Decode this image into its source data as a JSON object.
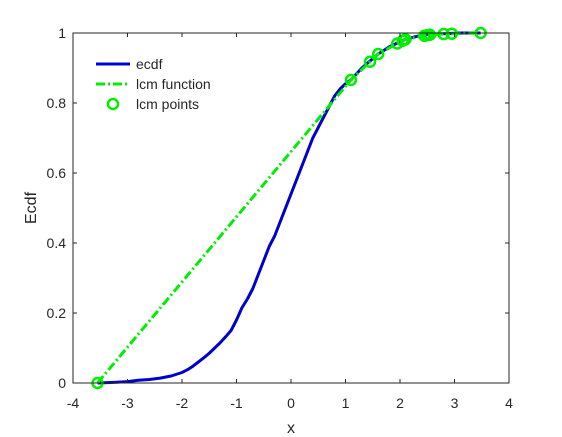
{
  "chart_data": {
    "type": "line",
    "xlabel": "x",
    "ylabel": "Ecdf",
    "xlim": [
      -4,
      4
    ],
    "ylim": [
      0,
      1
    ],
    "xticks": [
      -4,
      -3,
      -2,
      -1,
      0,
      1,
      2,
      3,
      4
    ],
    "yticks": [
      0,
      0.2,
      0.4,
      0.6,
      0.8,
      1
    ],
    "grid": false,
    "legend_position": "top-left",
    "series": [
      {
        "name": "ecdf",
        "style": "solid",
        "color": "#0000cc",
        "x": [
          -3.55,
          -3.2,
          -3.0,
          -2.8,
          -2.6,
          -2.4,
          -2.2,
          -2.0,
          -1.9,
          -1.8,
          -1.7,
          -1.6,
          -1.5,
          -1.4,
          -1.3,
          -1.2,
          -1.1,
          -1.0,
          -0.9,
          -0.8,
          -0.7,
          -0.6,
          -0.5,
          -0.4,
          -0.3,
          -0.2,
          -0.1,
          0.0,
          0.1,
          0.2,
          0.3,
          0.4,
          0.5,
          0.6,
          0.7,
          0.8,
          0.9,
          1.0,
          1.1,
          1.3,
          1.45,
          1.6,
          1.8,
          2.0,
          2.1,
          2.3,
          2.45,
          2.5,
          2.6,
          2.8,
          2.95,
          3.1,
          3.3,
          3.48
        ],
        "y": [
          0.0,
          0.002,
          0.004,
          0.008,
          0.01,
          0.014,
          0.02,
          0.03,
          0.038,
          0.048,
          0.06,
          0.072,
          0.085,
          0.1,
          0.115,
          0.132,
          0.15,
          0.18,
          0.215,
          0.24,
          0.27,
          0.31,
          0.35,
          0.39,
          0.42,
          0.46,
          0.5,
          0.54,
          0.58,
          0.62,
          0.66,
          0.7,
          0.73,
          0.76,
          0.79,
          0.82,
          0.84,
          0.855,
          0.866,
          0.9,
          0.92,
          0.94,
          0.96,
          0.975,
          0.982,
          0.99,
          0.995,
          0.996,
          0.997,
          0.998,
          0.999,
          1.0,
          1.0,
          1.0
        ]
      },
      {
        "name": "lcm function",
        "style": "dashdot",
        "color": "#00ee00",
        "x": [
          -3.55,
          1.1,
          1.45,
          1.6,
          1.95,
          2.05,
          2.1,
          2.45,
          2.5,
          2.55,
          2.8,
          2.95,
          3.48
        ],
        "y": [
          0.0,
          0.866,
          0.918,
          0.94,
          0.97,
          0.978,
          0.982,
          0.992,
          0.994,
          0.995,
          0.997,
          0.998,
          1.0
        ]
      },
      {
        "name": "lcm points",
        "style": "markers",
        "color": "#00ee00",
        "x": [
          -3.55,
          1.1,
          1.45,
          1.6,
          1.95,
          2.05,
          2.1,
          2.45,
          2.5,
          2.55,
          2.8,
          2.95,
          3.48
        ],
        "y": [
          0.0,
          0.866,
          0.918,
          0.94,
          0.97,
          0.978,
          0.982,
          0.992,
          0.994,
          0.995,
          0.997,
          0.998,
          1.0
        ]
      }
    ]
  }
}
